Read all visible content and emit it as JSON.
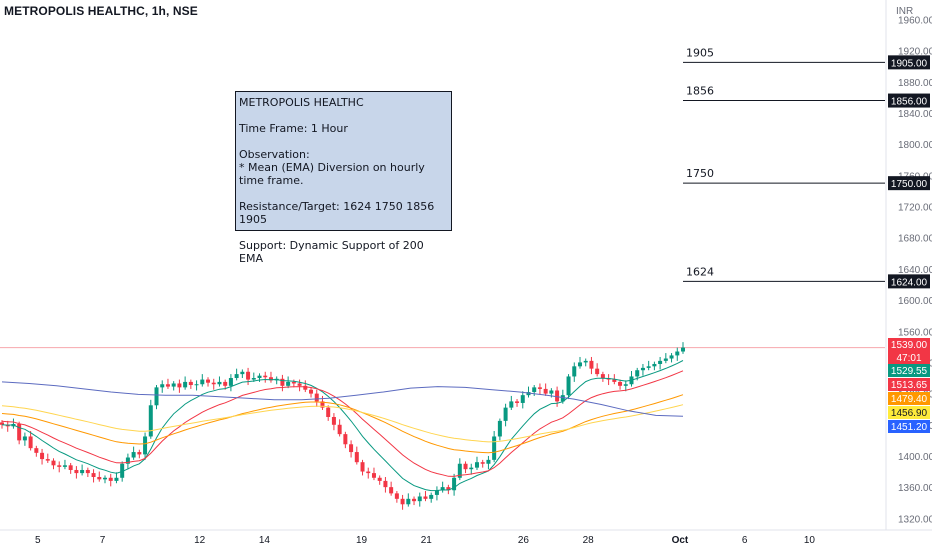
{
  "header": {
    "title": "METROPOLIS HEALTHC, 1h, NSE"
  },
  "note": {
    "lines": [
      "METROPOLIS HEALTHC",
      "Time Frame: 1 Hour",
      "Observation:",
      "* Mean (EMA) Diversion on hourly time frame.",
      "Resistance/Target: 1624 1750 1856 1905",
      "Support: Dynamic Support of 200 EMA"
    ]
  },
  "currency": "INR",
  "chart_data": {
    "type": "candlestick",
    "y_axis": {
      "ticks": [
        1320,
        1360,
        1400,
        1440,
        1480,
        1520,
        1560,
        1600,
        1640,
        1680,
        1720,
        1760,
        1800,
        1840,
        1880,
        1920,
        1960
      ],
      "ylim": [
        1305,
        1985
      ]
    },
    "x_axis": {
      "ticks": [
        {
          "label": "5",
          "slot": 7
        },
        {
          "label": "7",
          "slot": 19
        },
        {
          "label": "12",
          "slot": 37
        },
        {
          "label": "14",
          "slot": 49
        },
        {
          "label": "19",
          "slot": 67
        },
        {
          "label": "21",
          "slot": 79
        },
        {
          "label": "26",
          "slot": 97
        },
        {
          "label": "28",
          "slot": 109
        },
        {
          "label": "Oct",
          "slot": 126
        },
        {
          "label": "6",
          "slot": 138
        },
        {
          "label": "10",
          "slot": 150
        }
      ],
      "slot_range": [
        0,
        164
      ]
    },
    "candles_close": [
      1440,
      1438,
      1441,
      1420,
      1425,
      1410,
      1404,
      1396,
      1394,
      1388,
      1386,
      1388,
      1382,
      1378,
      1382,
      1378,
      1373,
      1370,
      1372,
      1368,
      1372,
      1390,
      1398,
      1405,
      1402,
      1425,
      1465,
      1488,
      1492,
      1489,
      1493,
      1488,
      1495,
      1491,
      1492,
      1498,
      1494,
      1492,
      1495,
      1490,
      1500,
      1505,
      1508,
      1498,
      1500,
      1503,
      1501,
      1497,
      1499,
      1490,
      1495,
      1493,
      1490,
      1485,
      1480,
      1470,
      1462,
      1450,
      1440,
      1428,
      1415,
      1405,
      1392,
      1380,
      1378,
      1372,
      1368,
      1360,
      1352,
      1345,
      1338,
      1345,
      1342,
      1348,
      1345,
      1350,
      1356,
      1360,
      1356,
      1372,
      1390,
      1383,
      1385,
      1392,
      1390,
      1395,
      1425,
      1445,
      1462,
      1470,
      1468,
      1478,
      1482,
      1488,
      1486,
      1480,
      1484,
      1470,
      1478,
      1502,
      1515,
      1520,
      1522,
      1512,
      1505,
      1500,
      1498,
      1495,
      1490,
      1492,
      1502,
      1510,
      1513,
      1515,
      1518,
      1522,
      1525,
      1529,
      1534,
      1539
    ],
    "ema_20_blue": [
      1495,
      1493,
      1490,
      1486,
      1482,
      1479,
      1478,
      1478,
      1476,
      1474,
      1472,
      1472,
      1474,
      1478,
      1482,
      1487,
      1489,
      1488,
      1485,
      1482,
      1478,
      1473,
      1466,
      1458,
      1452,
      1451
    ],
    "levels": [
      {
        "label": "1905",
        "value": 1905,
        "tag": "1905.00"
      },
      {
        "label": "1856",
        "value": 1856,
        "tag": "1856.00"
      },
      {
        "label": "1750",
        "value": 1750,
        "tag": "1750.00"
      },
      {
        "label": "1624",
        "value": 1624,
        "tag": "1624.00"
      }
    ],
    "price_tags": [
      {
        "value": 1539.0,
        "text": "1539.00",
        "color": "#f23645"
      },
      {
        "value": null,
        "text": "47:01",
        "color": "#f23645"
      },
      {
        "value": 1529.55,
        "text": "1529.55",
        "color": "#089981"
      },
      {
        "value": 1513.65,
        "text": "1513.65",
        "color": "#f23645"
      },
      {
        "value": 1479.4,
        "text": "1479.40",
        "color": "#ff9800"
      },
      {
        "value": 1456.9,
        "text": "1456.90",
        "color": "#ffeb3b"
      },
      {
        "value": 1451.2,
        "text": "1451.20",
        "color": "#2962ff"
      }
    ],
    "colors": {
      "up": "#089981",
      "down": "#f23645",
      "ema_fast": "#089981",
      "ema_mid": "#f23645",
      "ema_slow": "#ff9800",
      "ema_slower": "#ffd54f",
      "ema_long": "#5c6bc0",
      "last_price_line": "#f7a7ad"
    }
  }
}
